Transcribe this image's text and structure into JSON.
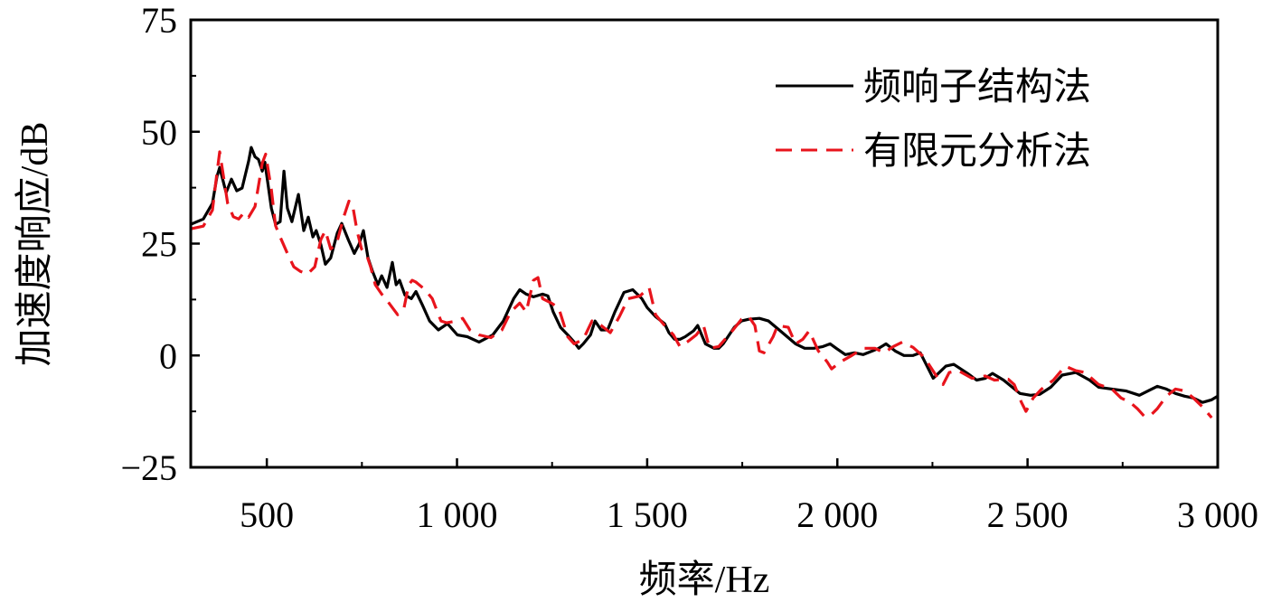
{
  "chart_data": {
    "type": "line",
    "title": "",
    "xlabel": "频率/Hz",
    "ylabel": "加速度响应/dB",
    "xlim": [
      300,
      3000
    ],
    "ylim": [
      -25,
      75
    ],
    "grid": false,
    "legend_position": "top-right",
    "x_ticks": [
      500,
      1000,
      1500,
      2000,
      2500,
      3000
    ],
    "x_tick_labels": [
      "500",
      "1 000",
      "1 500",
      "2 000",
      "2 500",
      "3 000"
    ],
    "x_minor_step": 250,
    "y_ticks": [
      -25,
      0,
      25,
      50,
      75
    ],
    "y_tick_labels": [
      "−25",
      "0",
      "25",
      "50",
      "75"
    ],
    "y_minor_step": 12.5,
    "series": [
      {
        "name": "频响子结构法",
        "color": "#000000",
        "style": "solid",
        "x": [
          300,
          333,
          357,
          369,
          376,
          393,
          407,
          421,
          435,
          452,
          459,
          469,
          478,
          488,
          495,
          512,
          523,
          535,
          545,
          554,
          566,
          583,
          597,
          609,
          621,
          630,
          642,
          654,
          668,
          685,
          697,
          714,
          730,
          742,
          754,
          766,
          778,
          792,
          802,
          816,
          830,
          840,
          849,
          863,
          880,
          892,
          909,
          928,
          951,
          975,
          1001,
          1027,
          1058,
          1094,
          1122,
          1149,
          1165,
          1182,
          1201,
          1225,
          1239,
          1253,
          1272,
          1291,
          1308,
          1320,
          1332,
          1351,
          1363,
          1379,
          1396,
          1415,
          1439,
          1462,
          1486,
          1500,
          1522,
          1546,
          1557,
          1572,
          1586,
          1600,
          1622,
          1633,
          1653,
          1676,
          1688,
          1700,
          1729,
          1748,
          1767,
          1795,
          1819,
          1847,
          1890,
          1914,
          1938,
          1962,
          1981,
          1997,
          2021,
          2045,
          2068,
          2092,
          2109,
          2128,
          2152,
          2175,
          2199,
          2218,
          2252,
          2285,
          2306,
          2342,
          2366,
          2389,
          2408,
          2437,
          2480,
          2508,
          2532,
          2561,
          2591,
          2627,
          2663,
          2687,
          2722,
          2758,
          2794,
          2817,
          2841,
          2865,
          2889,
          2913,
          2936,
          2960,
          2984,
          3000
        ],
        "y": [
          29.3,
          30.5,
          34.0,
          40.0,
          42.0,
          36.4,
          39.4,
          36.8,
          37.4,
          43.4,
          46.5,
          44.4,
          43.8,
          41.2,
          43.2,
          32.9,
          29.3,
          29.9,
          41.2,
          32.9,
          29.9,
          36.0,
          27.9,
          30.9,
          26.5,
          27.9,
          24.8,
          20.4,
          21.8,
          27.3,
          29.5,
          25.9,
          22.8,
          24.8,
          27.9,
          21.8,
          18.8,
          15.8,
          17.8,
          15.2,
          20.8,
          15.8,
          16.8,
          13.5,
          12.7,
          14.3,
          11.3,
          7.7,
          5.7,
          7.1,
          4.6,
          4.2,
          3.0,
          4.6,
          7.7,
          12.7,
          14.7,
          13.7,
          13.1,
          13.7,
          13.3,
          9.7,
          6.3,
          4.6,
          3.0,
          1.6,
          2.6,
          4.6,
          7.7,
          5.7,
          5.7,
          9.7,
          14.1,
          14.7,
          12.7,
          10.7,
          8.7,
          7.1,
          5.1,
          3.6,
          3.6,
          4.2,
          5.5,
          6.7,
          2.6,
          1.6,
          1.6,
          2.6,
          6.3,
          7.7,
          8.1,
          8.3,
          7.7,
          5.7,
          2.6,
          1.6,
          1.6,
          2.0,
          2.6,
          1.6,
          0.2,
          0.6,
          0.2,
          1.0,
          1.6,
          2.6,
          1.0,
          0.0,
          0.0,
          0.6,
          -5.1,
          -2.4,
          -2.0,
          -4.0,
          -5.5,
          -5.1,
          -4.0,
          -5.5,
          -8.5,
          -8.9,
          -8.7,
          -7.1,
          -4.4,
          -3.8,
          -5.5,
          -7.1,
          -7.5,
          -7.9,
          -8.9,
          -7.9,
          -6.9,
          -7.5,
          -8.5,
          -9.1,
          -9.5,
          -10.5,
          -9.9,
          -9.1
        ]
      },
      {
        "name": "有限元分析法",
        "color": "#e8141c",
        "style": "dashed",
        "x": [
          300,
          333,
          357,
          369,
          376,
          388,
          397,
          412,
          426,
          440,
          452,
          469,
          488,
          497,
          512,
          523,
          535,
          554,
          571,
          588,
          607,
          626,
          642,
          654,
          668,
          683,
          702,
          716,
          725,
          737,
          749,
          761,
          773,
          785,
          802,
          816,
          830,
          844,
          861,
          873,
          882,
          892,
          916,
          935,
          958,
          973,
          999,
          1015,
          1034,
          1058,
          1089,
          1118,
          1141,
          1165,
          1182,
          1201,
          1213,
          1225,
          1248,
          1267,
          1291,
          1308,
          1332,
          1355,
          1379,
          1403,
          1427,
          1450,
          1481,
          1505,
          1522,
          1546,
          1569,
          1586,
          1605,
          1629,
          1648,
          1664,
          1688,
          1724,
          1748,
          1767,
          1783,
          1795,
          1807,
          1831,
          1843,
          1871,
          1890,
          1909,
          1926,
          1950,
          1973,
          1985,
          2009,
          2038,
          2068,
          2099,
          2123,
          2147,
          2171,
          2199,
          2228,
          2259,
          2278,
          2294,
          2318,
          2354,
          2389,
          2413,
          2449,
          2465,
          2484,
          2496,
          2515,
          2537,
          2568,
          2599,
          2627,
          2651,
          2687,
          2722,
          2746,
          2770,
          2789,
          2806,
          2822,
          2841,
          2865,
          2889,
          2913,
          2936,
          2960,
          2984
        ],
        "y": [
          28.3,
          28.9,
          32.5,
          40.8,
          45.5,
          39.0,
          34.0,
          31.0,
          30.5,
          31.9,
          30.9,
          33.3,
          43.0,
          45.0,
          37.0,
          29.0,
          26.5,
          22.8,
          19.8,
          18.8,
          18.2,
          19.8,
          25.9,
          27.9,
          23.8,
          24.8,
          30.9,
          34.5,
          33.9,
          27.9,
          23.8,
          22.8,
          19.8,
          15.8,
          13.7,
          12.3,
          10.7,
          9.1,
          10.7,
          15.8,
          16.8,
          16.4,
          14.7,
          12.7,
          7.7,
          7.3,
          7.7,
          8.3,
          5.7,
          4.6,
          4.0,
          5.7,
          9.7,
          11.7,
          9.7,
          16.8,
          17.4,
          12.7,
          11.7,
          10.7,
          4.2,
          2.6,
          3.6,
          7.7,
          6.7,
          5.1,
          8.7,
          12.7,
          13.3,
          15.2,
          9.1,
          6.7,
          4.6,
          2.0,
          3.0,
          4.6,
          6.7,
          1.6,
          2.0,
          5.5,
          8.1,
          8.7,
          6.7,
          1.0,
          0.6,
          4.2,
          6.7,
          6.3,
          2.6,
          3.6,
          5.5,
          1.0,
          -1.4,
          -3.0,
          -1.4,
          0.0,
          1.6,
          1.6,
          0.6,
          2.0,
          3.0,
          1.8,
          -0.4,
          -4.4,
          -6.5,
          -3.8,
          -3.4,
          -5.1,
          -4.6,
          -5.5,
          -5.3,
          -6.5,
          -10.5,
          -12.5,
          -9.5,
          -7.5,
          -5.5,
          -2.4,
          -3.4,
          -3.8,
          -6.5,
          -7.5,
          -9.5,
          -10.5,
          -11.9,
          -13.5,
          -13.5,
          -11.9,
          -9.1,
          -7.5,
          -7.9,
          -9.5,
          -11.5,
          -13.9
        ]
      }
    ]
  }
}
